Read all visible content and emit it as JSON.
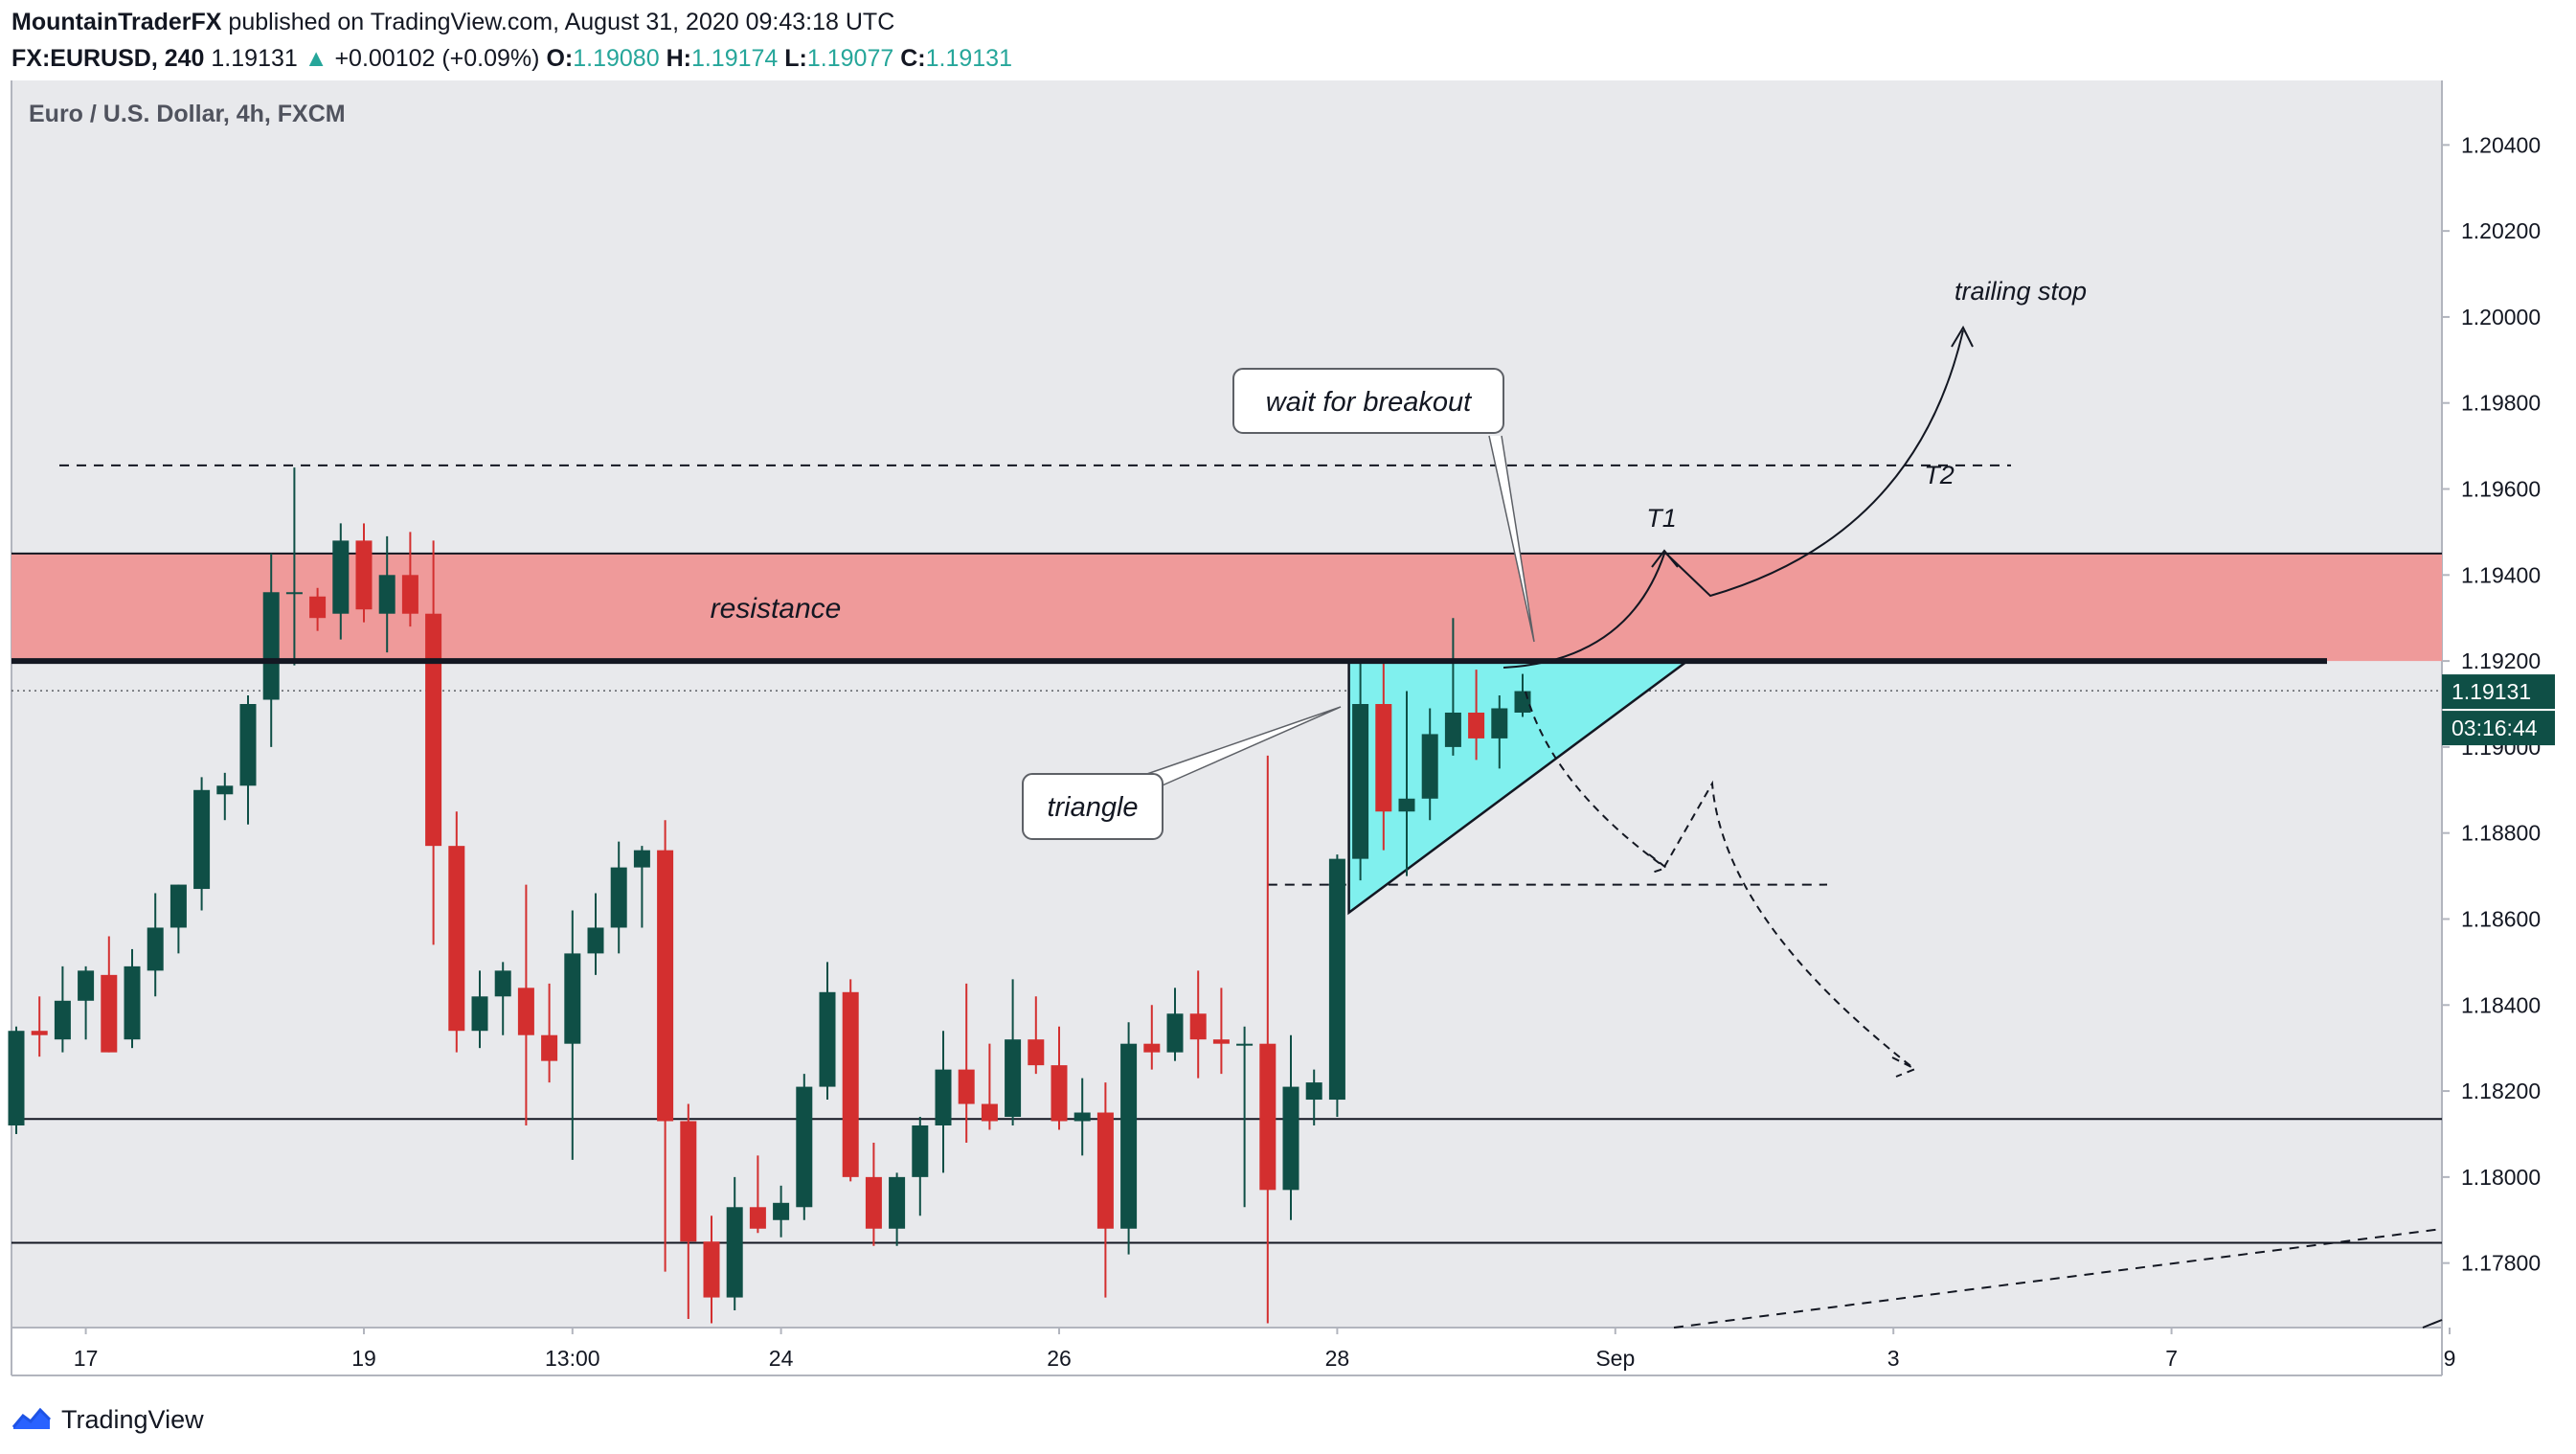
{
  "header": {
    "author": "MountainTraderFX",
    "published": "published on TradingView.com, August 31, 2020 09:43:18 UTC",
    "symbol": "FX:EURUSD, 240",
    "last": "1.19131",
    "change_arrow": "▲",
    "change": "+0.00102 (+0.09%)",
    "o_label": "O:",
    "o_value": "1.19080",
    "h_label": "H:",
    "h_value": "1.19174",
    "l_label": "L:",
    "l_value": "1.19077",
    "c_label": "C:",
    "c_value": "1.19131"
  },
  "footer": {
    "brand": "TradingView",
    "logo_icon": "tradingview-logo-icon"
  },
  "colors": {
    "up": "#0f4f46",
    "down": "#d32f2f",
    "resistance": "#ef9a9a",
    "triangle": "#80f0ee",
    "plot_bg": "#e8e9ec",
    "last_price_bg": "#0f4f46"
  },
  "chart_data": {
    "type": "candlestick",
    "title": "Euro / U.S. Dollar, 4h, FXCM",
    "ylim": [
      1.1765,
      1.2055
    ],
    "y_ticks": [
      "1.20400",
      "1.20200",
      "1.20000",
      "1.19800",
      "1.19600",
      "1.19400",
      "1.19200",
      "1.19000",
      "1.18800",
      "1.18600",
      "1.18400",
      "1.18200",
      "1.18000",
      "1.17800"
    ],
    "x_ticks": [
      {
        "label": "17",
        "i": 3
      },
      {
        "label": "19",
        "i": 15
      },
      {
        "label": "13:00",
        "i": 24
      },
      {
        "label": "24",
        "i": 33
      },
      {
        "label": "26",
        "i": 45
      },
      {
        "label": "28",
        "i": 57
      },
      {
        "label": "Sep",
        "i": 69
      },
      {
        "label": "3",
        "i": 81
      },
      {
        "label": "7",
        "i": 93
      },
      {
        "label": "9",
        "i": 105
      }
    ],
    "last_price": "1.19131",
    "countdown": "03:16:44",
    "candles": [
      {
        "o": 1.1812,
        "h": 1.1835,
        "l": 1.181,
        "c": 1.1834
      },
      {
        "o": 1.1834,
        "h": 1.1842,
        "l": 1.1828,
        "c": 1.1833
      },
      {
        "o": 1.1832,
        "h": 1.1849,
        "l": 1.1829,
        "c": 1.1841
      },
      {
        "o": 1.1841,
        "h": 1.1849,
        "l": 1.1832,
        "c": 1.1848
      },
      {
        "o": 1.1847,
        "h": 1.1856,
        "l": 1.1829,
        "c": 1.1829
      },
      {
        "o": 1.1832,
        "h": 1.1853,
        "l": 1.183,
        "c": 1.1849
      },
      {
        "o": 1.1848,
        "h": 1.1866,
        "l": 1.1842,
        "c": 1.1858
      },
      {
        "o": 1.1858,
        "h": 1.1868,
        "l": 1.1852,
        "c": 1.1868
      },
      {
        "o": 1.1867,
        "h": 1.1893,
        "l": 1.1862,
        "c": 1.189
      },
      {
        "o": 1.1889,
        "h": 1.1894,
        "l": 1.1883,
        "c": 1.1891
      },
      {
        "o": 1.1891,
        "h": 1.1912,
        "l": 1.1882,
        "c": 1.191
      },
      {
        "o": 1.1911,
        "h": 1.1945,
        "l": 1.19,
        "c": 1.1936
      },
      {
        "o": 1.1936,
        "h": 1.1965,
        "l": 1.1919,
        "c": 1.1936
      },
      {
        "o": 1.1935,
        "h": 1.1937,
        "l": 1.1927,
        "c": 1.193
      },
      {
        "o": 1.1931,
        "h": 1.1952,
        "l": 1.1925,
        "c": 1.1948
      },
      {
        "o": 1.1948,
        "h": 1.1952,
        "l": 1.1929,
        "c": 1.1932
      },
      {
        "o": 1.1931,
        "h": 1.1949,
        "l": 1.1922,
        "c": 1.194
      },
      {
        "o": 1.194,
        "h": 1.195,
        "l": 1.1928,
        "c": 1.1931
      },
      {
        "o": 1.1931,
        "h": 1.1948,
        "l": 1.1854,
        "c": 1.1877
      },
      {
        "o": 1.1877,
        "h": 1.1885,
        "l": 1.1829,
        "c": 1.1834
      },
      {
        "o": 1.1834,
        "h": 1.1848,
        "l": 1.183,
        "c": 1.1842
      },
      {
        "o": 1.1842,
        "h": 1.185,
        "l": 1.1833,
        "c": 1.1848
      },
      {
        "o": 1.1844,
        "h": 1.1868,
        "l": 1.1812,
        "c": 1.1833
      },
      {
        "o": 1.1833,
        "h": 1.1845,
        "l": 1.1822,
        "c": 1.1827
      },
      {
        "o": 1.1831,
        "h": 1.1862,
        "l": 1.1804,
        "c": 1.1852
      },
      {
        "o": 1.1852,
        "h": 1.1866,
        "l": 1.1847,
        "c": 1.1858
      },
      {
        "o": 1.1858,
        "h": 1.1878,
        "l": 1.1852,
        "c": 1.1872
      },
      {
        "o": 1.1872,
        "h": 1.1877,
        "l": 1.1858,
        "c": 1.1876
      },
      {
        "o": 1.1876,
        "h": 1.1883,
        "l": 1.1778,
        "c": 1.1813
      },
      {
        "o": 1.1813,
        "h": 1.1817,
        "l": 1.1767,
        "c": 1.1785
      },
      {
        "o": 1.1785,
        "h": 1.1791,
        "l": 1.1766,
        "c": 1.1772
      },
      {
        "o": 1.1772,
        "h": 1.18,
        "l": 1.1769,
        "c": 1.1793
      },
      {
        "o": 1.1793,
        "h": 1.1805,
        "l": 1.1787,
        "c": 1.1788
      },
      {
        "o": 1.179,
        "h": 1.1798,
        "l": 1.1786,
        "c": 1.1794
      },
      {
        "o": 1.1793,
        "h": 1.1824,
        "l": 1.179,
        "c": 1.1821
      },
      {
        "o": 1.1821,
        "h": 1.185,
        "l": 1.1818,
        "c": 1.1843
      },
      {
        "o": 1.1843,
        "h": 1.1846,
        "l": 1.1799,
        "c": 1.18
      },
      {
        "o": 1.18,
        "h": 1.1808,
        "l": 1.1784,
        "c": 1.1788
      },
      {
        "o": 1.1788,
        "h": 1.1801,
        "l": 1.1784,
        "c": 1.18
      },
      {
        "o": 1.18,
        "h": 1.1814,
        "l": 1.1791,
        "c": 1.1812
      },
      {
        "o": 1.1812,
        "h": 1.1834,
        "l": 1.1801,
        "c": 1.1825
      },
      {
        "o": 1.1825,
        "h": 1.1845,
        "l": 1.1808,
        "c": 1.1817
      },
      {
        "o": 1.1817,
        "h": 1.1831,
        "l": 1.1811,
        "c": 1.1813
      },
      {
        "o": 1.1814,
        "h": 1.1846,
        "l": 1.1812,
        "c": 1.1832
      },
      {
        "o": 1.1832,
        "h": 1.1842,
        "l": 1.1824,
        "c": 1.1826
      },
      {
        "o": 1.1826,
        "h": 1.1835,
        "l": 1.1811,
        "c": 1.1813
      },
      {
        "o": 1.1813,
        "h": 1.1823,
        "l": 1.1805,
        "c": 1.1815
      },
      {
        "o": 1.1815,
        "h": 1.1822,
        "l": 1.1772,
        "c": 1.1788
      },
      {
        "o": 1.1788,
        "h": 1.1836,
        "l": 1.1782,
        "c": 1.1831
      },
      {
        "o": 1.1831,
        "h": 1.184,
        "l": 1.1825,
        "c": 1.1829
      },
      {
        "o": 1.1829,
        "h": 1.1844,
        "l": 1.1827,
        "c": 1.1838
      },
      {
        "o": 1.1838,
        "h": 1.1848,
        "l": 1.1823,
        "c": 1.1832
      },
      {
        "o": 1.1832,
        "h": 1.1844,
        "l": 1.1824,
        "c": 1.1831
      },
      {
        "o": 1.1831,
        "h": 1.1835,
        "l": 1.1793,
        "c": 1.1831
      },
      {
        "o": 1.1831,
        "h": 1.1898,
        "l": 1.1766,
        "c": 1.1797
      },
      {
        "o": 1.1797,
        "h": 1.1833,
        "l": 1.179,
        "c": 1.1821
      },
      {
        "o": 1.1818,
        "h": 1.1825,
        "l": 1.1812,
        "c": 1.1822
      },
      {
        "o": 1.1818,
        "h": 1.1875,
        "l": 1.1814,
        "c": 1.1874
      },
      {
        "o": 1.1874,
        "h": 1.192,
        "l": 1.1869,
        "c": 1.191
      },
      {
        "o": 1.191,
        "h": 1.192,
        "l": 1.1876,
        "c": 1.1885
      },
      {
        "o": 1.1885,
        "h": 1.1913,
        "l": 1.187,
        "c": 1.1888
      },
      {
        "o": 1.1888,
        "h": 1.1909,
        "l": 1.1883,
        "c": 1.1903
      },
      {
        "o": 1.19,
        "h": 1.193,
        "l": 1.1898,
        "c": 1.1908
      },
      {
        "o": 1.1908,
        "h": 1.1918,
        "l": 1.1897,
        "c": 1.1902
      },
      {
        "o": 1.1902,
        "h": 1.1912,
        "l": 1.1895,
        "c": 1.1909
      },
      {
        "o": 1.1908,
        "h": 1.1917,
        "l": 1.1907,
        "c": 1.1913
      }
    ],
    "levels": [
      {
        "name": "resistance",
        "label": "resistance",
        "low": 1.192,
        "high": 1.1945
      },
      {
        "name": "resistance-line",
        "value": 1.192
      },
      {
        "name": "dotted-last",
        "value": 1.19131
      },
      {
        "name": "top-dashed",
        "value": 1.19655
      },
      {
        "name": "mid-dashed",
        "value": 1.1868
      },
      {
        "name": "support-1",
        "value": 1.18135
      },
      {
        "name": "support-2",
        "value": 1.17847
      }
    ],
    "annotations": [
      {
        "name": "trailing-stop",
        "text": "trailing stop"
      },
      {
        "name": "wait-for-breakout",
        "text": "wait for breakout"
      },
      {
        "name": "target-1",
        "text": "T1"
      },
      {
        "name": "target-2",
        "text": "T2"
      },
      {
        "name": "triangle",
        "text": "triangle"
      }
    ]
  }
}
